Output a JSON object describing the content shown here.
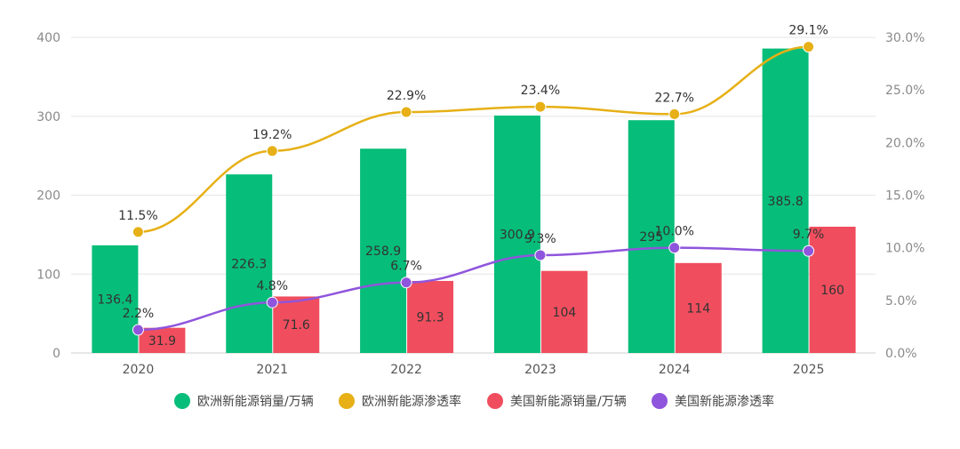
{
  "chart_data": {
    "type": "bar",
    "title": "",
    "xlabel": "",
    "ylabel": "",
    "categories": [
      "2020",
      "2021",
      "2022",
      "2023",
      "2024",
      "2025"
    ],
    "ylim": [
      0,
      400
    ],
    "yticks": [
      "0",
      "100",
      "200",
      "300",
      "400"
    ],
    "y2lim": [
      0,
      30
    ],
    "y2ticks": [
      "0.0%",
      "5.0%",
      "10.0%",
      "15.0%",
      "20.0%",
      "25.0%",
      "30.0%"
    ],
    "grid": true,
    "legend_position": "bottom",
    "series": [
      {
        "name": "欧洲新能源销量/万辆",
        "kind": "bar",
        "axis": "left",
        "color": "#07bd7a",
        "values": [
          136.4,
          226.3,
          258.9,
          300.9,
          295,
          385.8
        ],
        "labels": [
          "136.4",
          "226.3",
          "258.9",
          "300.9",
          "295",
          "385.8"
        ]
      },
      {
        "name": "欧洲新能源渗透率",
        "kind": "line",
        "axis": "right",
        "color": "#e6b016",
        "values": [
          11.5,
          19.2,
          22.9,
          23.4,
          22.7,
          29.1
        ],
        "labels": [
          "11.5%",
          "19.2%",
          "22.9%",
          "23.4%",
          "22.7%",
          "29.1%"
        ]
      },
      {
        "name": "美国新能源销量/万辆",
        "kind": "bar",
        "axis": "left",
        "color": "#f04e5e",
        "values": [
          31.9,
          71.6,
          91.3,
          104,
          114,
          160
        ],
        "labels": [
          "31.9",
          "71.6",
          "91.3",
          "104",
          "114",
          "160"
        ]
      },
      {
        "name": "美国新能源渗透率",
        "kind": "line",
        "axis": "right",
        "color": "#8f55dc",
        "values": [
          2.2,
          4.8,
          6.7,
          9.3,
          10.0,
          9.7
        ],
        "labels": [
          "2.2%",
          "4.8%",
          "6.7%",
          "9.3%",
          "10.0%",
          "9.7%"
        ]
      }
    ]
  }
}
